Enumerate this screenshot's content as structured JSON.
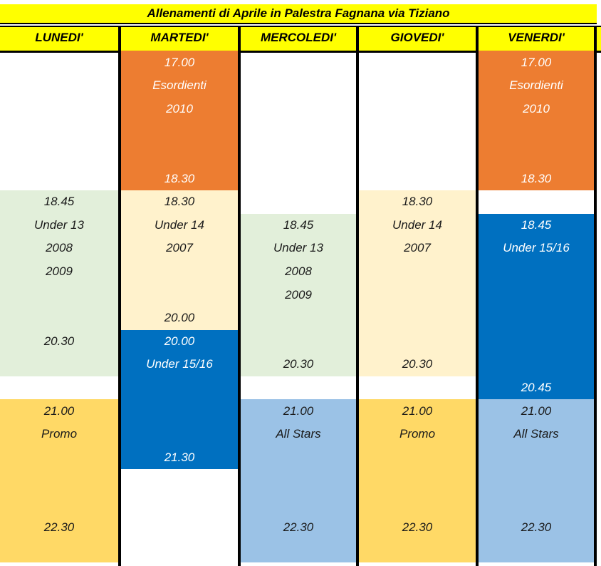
{
  "title": "Allenamenti di Aprile in Palestra Fagnana via Tiziano",
  "colors": {
    "header": "#ffff00",
    "orange": "#ed7d31",
    "beige": "#fff2cc",
    "green": "#e2efda",
    "blue": "#0070c0",
    "gold": "#ffd966",
    "lightblue": "#9bc2e6"
  },
  "days": [
    "LUNEDI'",
    "MARTEDI'",
    "MERCOLEDI'",
    "GIOVEDI'",
    "VENERDI'"
  ],
  "sessions": [
    {
      "day": 0,
      "color": "green",
      "start_row": 7,
      "end_row": 14,
      "text_color": "dark",
      "lines": [
        {
          "row": 7,
          "text": "18.45"
        },
        {
          "row": 8,
          "text": "Under 13"
        },
        {
          "row": 9,
          "text": "2008"
        },
        {
          "row": 10,
          "text": "2009"
        },
        {
          "row": 13,
          "text": "20.30"
        }
      ]
    },
    {
      "day": 0,
      "color": "gold",
      "start_row": 16,
      "end_row": 22,
      "text_color": "dark",
      "lines": [
        {
          "row": 16,
          "text": "21.00"
        },
        {
          "row": 17,
          "text": "Promo"
        },
        {
          "row": 21,
          "text": "22.30"
        }
      ]
    },
    {
      "day": 1,
      "color": "orange",
      "start_row": 1,
      "end_row": 6,
      "text_color": "light",
      "lines": [
        {
          "row": 1,
          "text": "17.00"
        },
        {
          "row": 2,
          "text": "Esordienti"
        },
        {
          "row": 3,
          "text": "2010"
        },
        {
          "row": 6,
          "text": "18.30"
        }
      ]
    },
    {
      "day": 1,
      "color": "beige",
      "start_row": 7,
      "end_row": 12,
      "text_color": "dark",
      "lines": [
        {
          "row": 7,
          "text": "18.30"
        },
        {
          "row": 8,
          "text": "Under 14"
        },
        {
          "row": 9,
          "text": "2007"
        },
        {
          "row": 12,
          "text": "20.00"
        }
      ]
    },
    {
      "day": 1,
      "color": "blue",
      "start_row": 13,
      "end_row": 18,
      "text_color": "light",
      "lines": [
        {
          "row": 13,
          "text": "20.00"
        },
        {
          "row": 14,
          "text": "Under 15/16"
        },
        {
          "row": 18,
          "text": "21.30"
        }
      ]
    },
    {
      "day": 2,
      "color": "green",
      "start_row": 8,
      "end_row": 14,
      "text_color": "dark",
      "lines": [
        {
          "row": 8,
          "text": "18.45"
        },
        {
          "row": 9,
          "text": "Under 13"
        },
        {
          "row": 10,
          "text": "2008"
        },
        {
          "row": 11,
          "text": "2009"
        },
        {
          "row": 14,
          "text": "20.30"
        }
      ]
    },
    {
      "day": 2,
      "color": "lightblue",
      "start_row": 16,
      "end_row": 22,
      "text_color": "dark",
      "lines": [
        {
          "row": 16,
          "text": "21.00"
        },
        {
          "row": 17,
          "text": "All Stars"
        },
        {
          "row": 21,
          "text": "22.30"
        }
      ]
    },
    {
      "day": 3,
      "color": "beige",
      "start_row": 7,
      "end_row": 14,
      "text_color": "dark",
      "lines": [
        {
          "row": 7,
          "text": "18.30"
        },
        {
          "row": 8,
          "text": "Under 14"
        },
        {
          "row": 9,
          "text": "2007"
        },
        {
          "row": 14,
          "text": "20.30"
        }
      ]
    },
    {
      "day": 3,
      "color": "gold",
      "start_row": 16,
      "end_row": 22,
      "text_color": "dark",
      "lines": [
        {
          "row": 16,
          "text": "21.00"
        },
        {
          "row": 17,
          "text": "Promo"
        },
        {
          "row": 21,
          "text": "22.30"
        }
      ]
    },
    {
      "day": 4,
      "color": "orange",
      "start_row": 1,
      "end_row": 6,
      "text_color": "light",
      "lines": [
        {
          "row": 1,
          "text": "17.00"
        },
        {
          "row": 2,
          "text": "Esordienti"
        },
        {
          "row": 3,
          "text": "2010"
        },
        {
          "row": 6,
          "text": "18.30"
        }
      ]
    },
    {
      "day": 4,
      "color": "blue",
      "start_row": 8,
      "end_row": 15,
      "text_color": "light",
      "lines": [
        {
          "row": 8,
          "text": "18.45"
        },
        {
          "row": 9,
          "text": "Under 15/16"
        },
        {
          "row": 15,
          "text": "20.45"
        }
      ]
    },
    {
      "day": 4,
      "color": "lightblue",
      "start_row": 16,
      "end_row": 22,
      "text_color": "dark",
      "lines": [
        {
          "row": 16,
          "text": "21.00"
        },
        {
          "row": 17,
          "text": "All Stars"
        },
        {
          "row": 21,
          "text": "22.30"
        }
      ]
    }
  ]
}
